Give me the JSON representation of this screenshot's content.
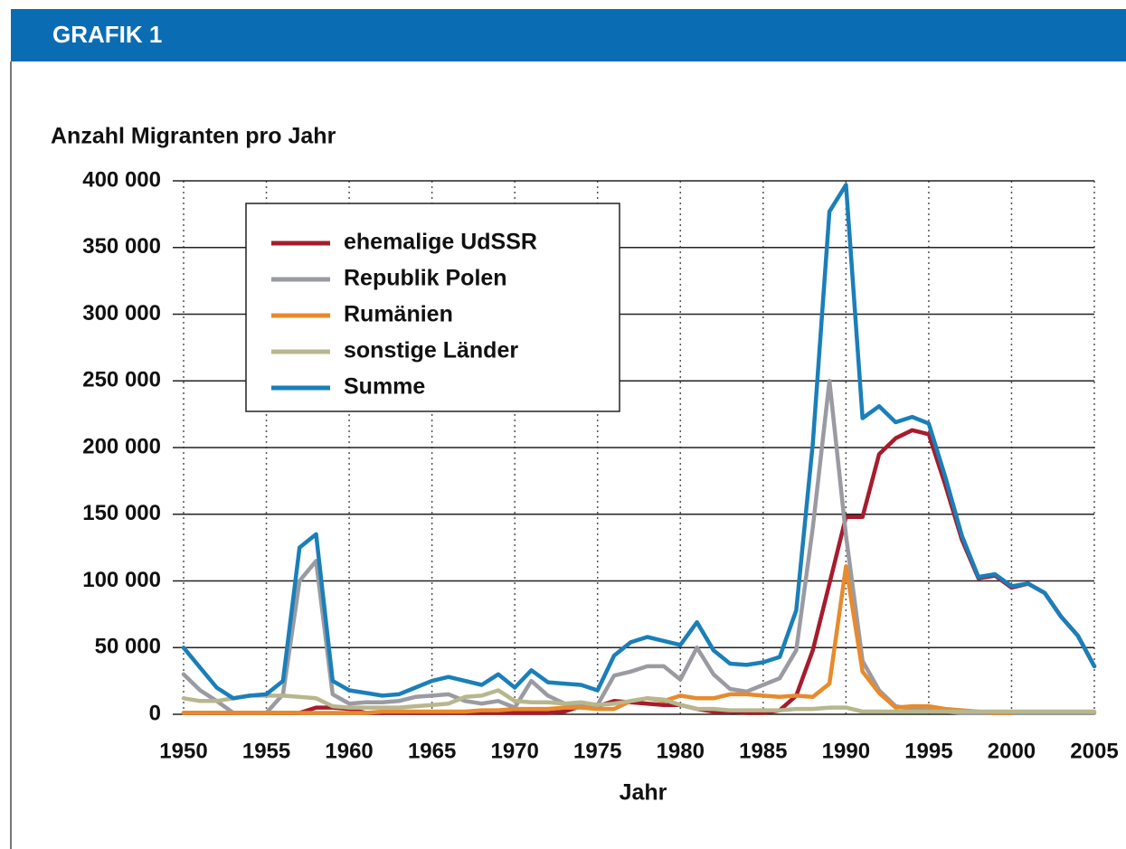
{
  "chart_data": {
    "type": "line",
    "header": "GRAFIK 1",
    "y_label": "Anzahl Migranten pro Jahr",
    "x_label": "Jahr",
    "x": [
      1950,
      1951,
      1952,
      1953,
      1954,
      1955,
      1956,
      1957,
      1958,
      1959,
      1960,
      1961,
      1962,
      1963,
      1964,
      1965,
      1966,
      1967,
      1968,
      1969,
      1970,
      1971,
      1972,
      1973,
      1974,
      1975,
      1976,
      1977,
      1978,
      1979,
      1980,
      1981,
      1982,
      1983,
      1984,
      1985,
      1986,
      1987,
      1988,
      1989,
      1990,
      1991,
      1992,
      1993,
      1994,
      1995,
      1996,
      1997,
      1998,
      1999,
      2000,
      2001,
      2002,
      2003,
      2004,
      2005
    ],
    "xlim": [
      1950,
      2005
    ],
    "xticks": [
      1950,
      1955,
      1960,
      1965,
      1970,
      1975,
      1980,
      1985,
      1990,
      1995,
      2000,
      2005
    ],
    "ylim": [
      0,
      400000
    ],
    "yticks": [
      0,
      {
        "value": 50000,
        "label": "50 000"
      },
      {
        "value": 100000,
        "label": "100 000"
      },
      {
        "value": 150000,
        "label": "150 000"
      },
      {
        "value": 200000,
        "label": "200 000"
      },
      {
        "value": 250000,
        "label": "250 000"
      },
      {
        "value": 300000,
        "label": "300 000"
      },
      {
        "value": 350000,
        "label": "350 000"
      },
      {
        "value": 400000,
        "label": "400 000"
      }
    ],
    "grid": true,
    "legend": "upper left",
    "series": [
      {
        "name": "ehemalige UdSSR",
        "color": "#a61c2c",
        "values": [
          1000,
          1000,
          1000,
          1000,
          1000,
          1000,
          1000,
          1000,
          5000,
          5000,
          4000,
          1000,
          1000,
          1000,
          1000,
          1000,
          1000,
          1000,
          1000,
          1000,
          1000,
          1000,
          1000,
          2000,
          6000,
          6000,
          10000,
          9000,
          8000,
          7000,
          7000,
          4000,
          2000,
          2000,
          1000,
          1000,
          3000,
          14000,
          48000,
          98000,
          148000,
          148000,
          195000,
          207000,
          213000,
          210000,
          172000,
          131000,
          102000,
          104000,
          95000,
          98000,
          91000,
          73000,
          59000,
          36000
        ]
      },
      {
        "name": "Republik Polen",
        "color": "#9a9ba2",
        "values": [
          30000,
          18000,
          10000,
          1000,
          1000,
          1000,
          15000,
          100000,
          115000,
          15000,
          8000,
          9000,
          9000,
          10000,
          13000,
          14000,
          15000,
          10000,
          8000,
          10000,
          5000,
          25000,
          14000,
          8000,
          8000,
          7000,
          29000,
          32000,
          36000,
          36000,
          26000,
          50000,
          30000,
          19000,
          17000,
          22000,
          27000,
          48000,
          140000,
          250000,
          134000,
          40000,
          18000,
          6000,
          4000,
          3000,
          2000,
          1000,
          1000,
          1000,
          1000,
          1000,
          1000,
          1000,
          1000,
          1000
        ]
      },
      {
        "name": "Rumänien",
        "color": "#e88a2c",
        "values": [
          1000,
          1000,
          1000,
          1000,
          1000,
          1000,
          1000,
          1000,
          1000,
          1000,
          1000,
          1000,
          2000,
          2000,
          2000,
          2000,
          2000,
          2000,
          3000,
          3000,
          4000,
          4000,
          4000,
          5000,
          5000,
          4000,
          4000,
          10000,
          12000,
          10000,
          14000,
          12000,
          12000,
          15000,
          15000,
          14000,
          13000,
          14000,
          13000,
          23000,
          111000,
          32000,
          16000,
          5000,
          6000,
          6000,
          4000,
          3000,
          2000,
          1000,
          1000,
          null,
          null,
          null,
          null,
          null
        ]
      },
      {
        "name": "sonstige Länder",
        "color": "#b8b68e",
        "values": [
          12000,
          10000,
          10000,
          12000,
          14000,
          14000,
          14000,
          13000,
          12000,
          6000,
          5000,
          5000,
          5000,
          5000,
          6000,
          7000,
          8000,
          13000,
          14000,
          18000,
          10000,
          9000,
          9000,
          8000,
          9000,
          7000,
          8000,
          10000,
          12000,
          11000,
          7000,
          4000,
          4000,
          3000,
          3000,
          3000,
          3000,
          4000,
          4000,
          5000,
          5000,
          2000,
          2000,
          2000,
          2000,
          2000,
          2000,
          2000,
          2000,
          2000,
          2000,
          2000,
          2000,
          2000,
          2000,
          2000
        ]
      },
      {
        "name": "Summe",
        "color": "#1a7fb9",
        "values": [
          50000,
          35000,
          20000,
          12000,
          14000,
          15000,
          25000,
          125000,
          135000,
          25000,
          18000,
          16000,
          14000,
          15000,
          20000,
          25000,
          28000,
          25000,
          22000,
          30000,
          20000,
          33000,
          24000,
          23000,
          22000,
          18000,
          44000,
          54000,
          58000,
          55000,
          52000,
          69000,
          48000,
          38000,
          37000,
          39000,
          43000,
          78000,
          203000,
          377000,
          397000,
          222000,
          231000,
          219000,
          223000,
          218000,
          178000,
          134000,
          103000,
          105000,
          96000,
          98000,
          91000,
          73000,
          59000,
          36000
        ]
      }
    ]
  }
}
